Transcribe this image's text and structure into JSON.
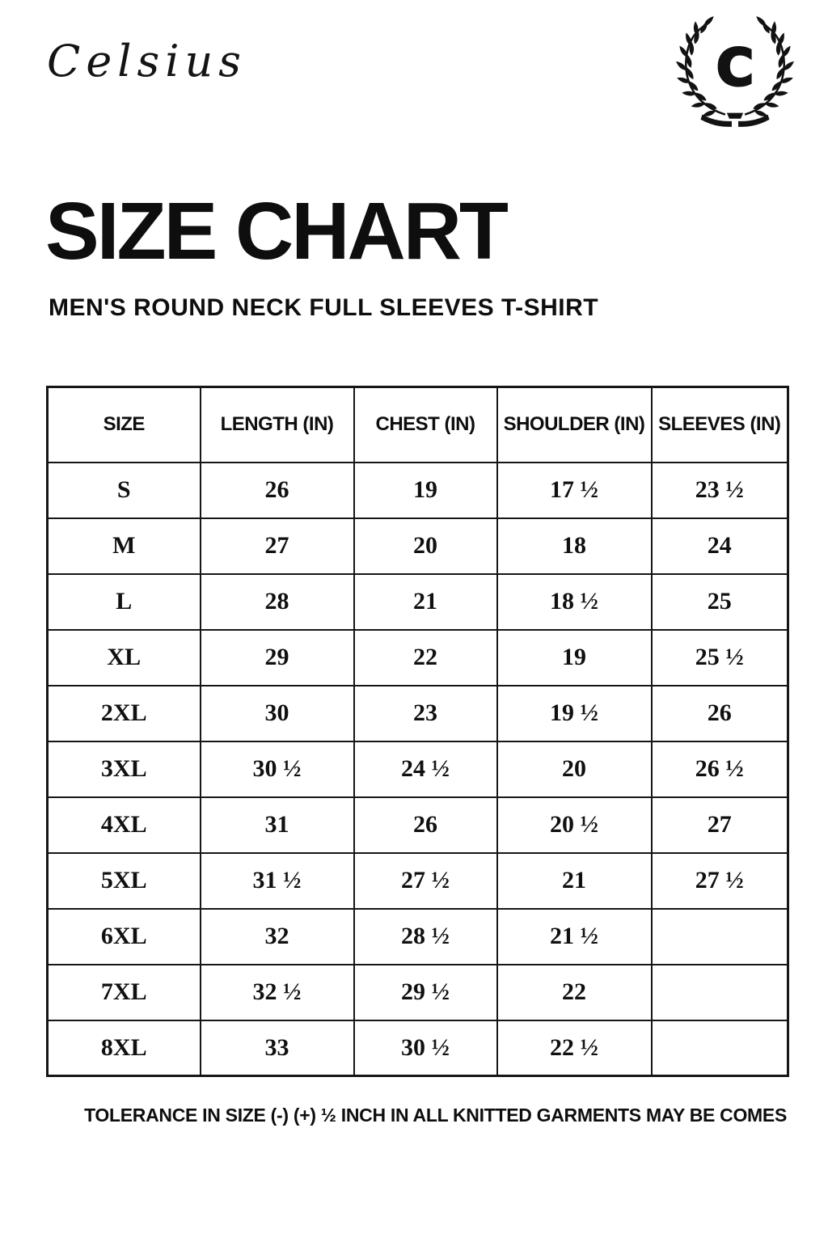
{
  "brand": {
    "name": "Celsius",
    "crest_letter": "C"
  },
  "title": "SIZE CHART",
  "subtitle": "MEN'S ROUND NECK FULL SLEEVES T-SHIRT",
  "table": {
    "headers": [
      "SIZE",
      "LENGTH (IN)",
      "CHEST (IN)",
      "SHOULDER (IN)",
      "SLEEVES (IN)"
    ],
    "rows": [
      {
        "size": "S",
        "length": "26",
        "chest": "19",
        "shoulder": "17 ½",
        "sleeves": "23 ½"
      },
      {
        "size": "M",
        "length": "27",
        "chest": "20",
        "shoulder": "18",
        "sleeves": "24"
      },
      {
        "size": "L",
        "length": "28",
        "chest": "21",
        "shoulder": "18 ½",
        "sleeves": "25"
      },
      {
        "size": "XL",
        "length": "29",
        "chest": "22",
        "shoulder": "19",
        "sleeves": "25 ½"
      },
      {
        "size": "2XL",
        "length": "30",
        "chest": "23",
        "shoulder": "19 ½",
        "sleeves": "26"
      },
      {
        "size": "3XL",
        "length": "30 ½",
        "chest": "24 ½",
        "shoulder": "20",
        "sleeves": "26 ½"
      },
      {
        "size": "4XL",
        "length": "31",
        "chest": "26",
        "shoulder": "20 ½",
        "sleeves": "27"
      },
      {
        "size": "5XL",
        "length": "31 ½",
        "chest": "27 ½",
        "shoulder": "21",
        "sleeves": "27 ½"
      },
      {
        "size": "6XL",
        "length": "32",
        "chest": "28 ½",
        "shoulder": "21 ½",
        "sleeves": ""
      },
      {
        "size": "7XL",
        "length": "32 ½",
        "chest": "29 ½",
        "shoulder": "22",
        "sleeves": ""
      },
      {
        "size": "8XL",
        "length": "33",
        "chest": "30 ½",
        "shoulder": "22 ½",
        "sleeves": ""
      }
    ]
  },
  "footer_note": "TOLERANCE IN SIZE (-) (+) ½ INCH IN ALL KNITTED GARMENTS MAY BE COMES",
  "colors": {
    "ink": "#111111",
    "background": "#ffffff"
  }
}
